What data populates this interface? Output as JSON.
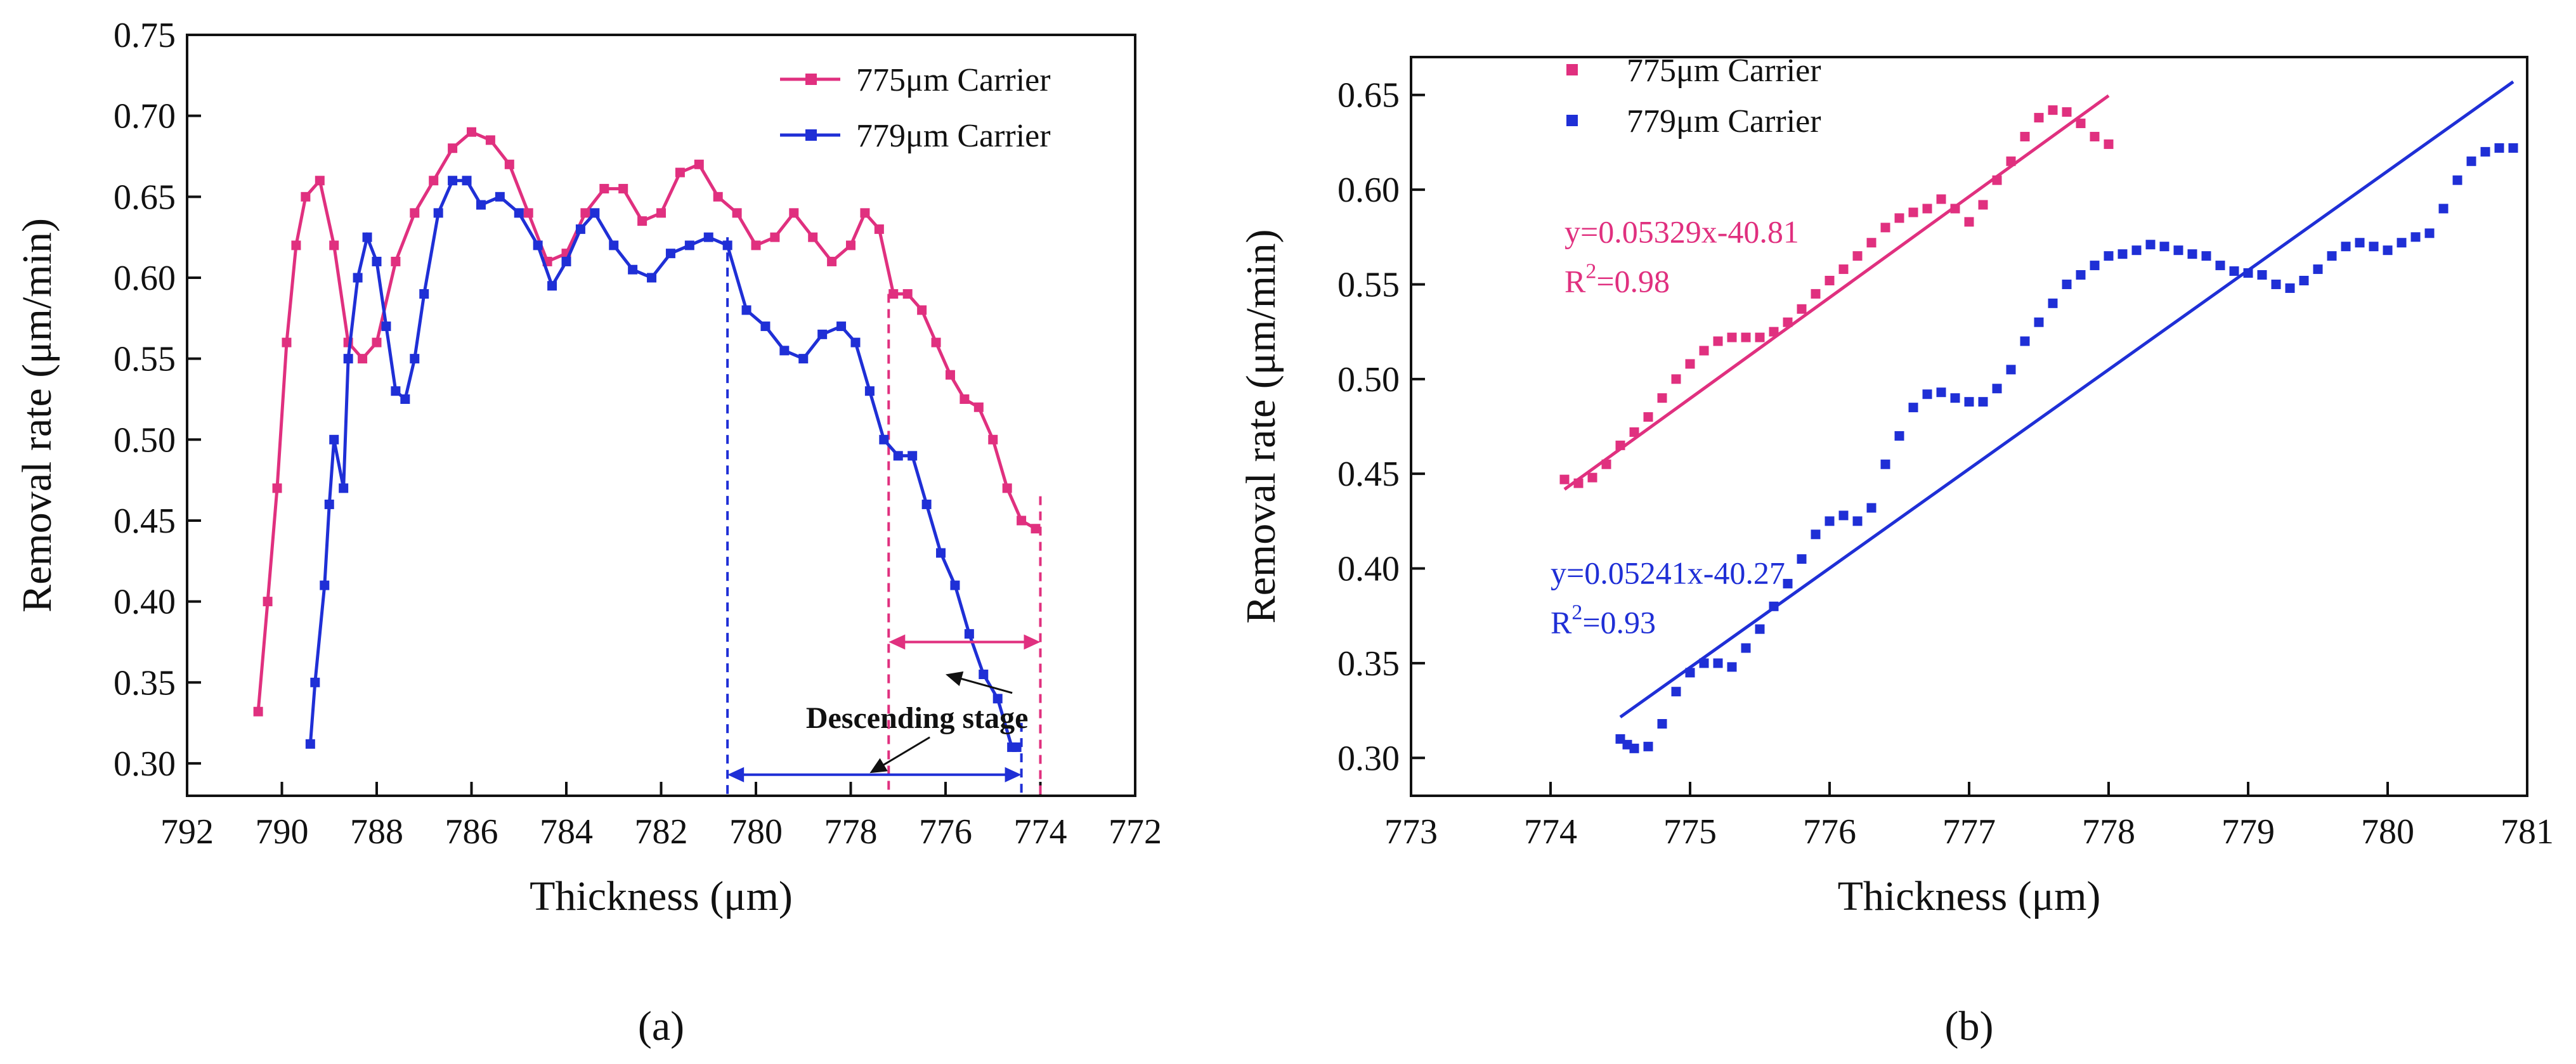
{
  "chart_data": [
    {
      "type": "line",
      "panel_label": "(a)",
      "xlabel": "Thickness (μm)",
      "ylabel": "Removal rate (μm/min)",
      "xlim": [
        792,
        772
      ],
      "x_reversed": true,
      "ylim": [
        0.28,
        0.75
      ],
      "x_ticks": [
        792,
        790,
        788,
        786,
        784,
        782,
        780,
        778,
        776,
        774,
        772
      ],
      "y_ticks": [
        0.3,
        0.35,
        0.4,
        0.45,
        0.5,
        0.55,
        0.6,
        0.65,
        0.7,
        0.75
      ],
      "x_tick_labels": [
        "792",
        "790",
        "788",
        "786",
        "784",
        "782",
        "780",
        "778",
        "776",
        "774",
        "772"
      ],
      "y_tick_labels": [
        "0.30",
        "0.35",
        "0.40",
        "0.45",
        "0.50",
        "0.55",
        "0.60",
        "0.65",
        "0.70",
        "0.75"
      ],
      "legend_position": "top-right",
      "grid": false,
      "series": [
        {
          "name": "775μm Carrier",
          "color": "#e0307f",
          "marker": "square",
          "points": [
            [
              790.5,
              0.332
            ],
            [
              790.3,
              0.4
            ],
            [
              790.1,
              0.47
            ],
            [
              789.9,
              0.56
            ],
            [
              789.7,
              0.62
            ],
            [
              789.5,
              0.65
            ],
            [
              789.2,
              0.66
            ],
            [
              788.9,
              0.62
            ],
            [
              788.6,
              0.56
            ],
            [
              788.3,
              0.55
            ],
            [
              788.0,
              0.56
            ],
            [
              787.6,
              0.61
            ],
            [
              787.2,
              0.64
            ],
            [
              786.8,
              0.66
            ],
            [
              786.4,
              0.68
            ],
            [
              786.0,
              0.69
            ],
            [
              785.6,
              0.685
            ],
            [
              785.2,
              0.67
            ],
            [
              784.8,
              0.64
            ],
            [
              784.4,
              0.61
            ],
            [
              784.0,
              0.615
            ],
            [
              783.6,
              0.64
            ],
            [
              783.2,
              0.655
            ],
            [
              782.8,
              0.655
            ],
            [
              782.4,
              0.635
            ],
            [
              782.0,
              0.64
            ],
            [
              781.6,
              0.665
            ],
            [
              781.2,
              0.67
            ],
            [
              780.8,
              0.65
            ],
            [
              780.4,
              0.64
            ],
            [
              780.0,
              0.62
            ],
            [
              779.6,
              0.625
            ],
            [
              779.2,
              0.64
            ],
            [
              778.8,
              0.625
            ],
            [
              778.4,
              0.61
            ],
            [
              778.0,
              0.62
            ],
            [
              777.7,
              0.64
            ],
            [
              777.4,
              0.63
            ],
            [
              777.1,
              0.59
            ],
            [
              776.8,
              0.59
            ],
            [
              776.5,
              0.58
            ],
            [
              776.2,
              0.56
            ],
            [
              775.9,
              0.54
            ],
            [
              775.6,
              0.525
            ],
            [
              775.3,
              0.52
            ],
            [
              775.0,
              0.5
            ],
            [
              774.7,
              0.47
            ],
            [
              774.4,
              0.45
            ],
            [
              774.1,
              0.445
            ]
          ]
        },
        {
          "name": "779μm Carrier",
          "color": "#1f2fd6",
          "marker": "square",
          "points": [
            [
              789.4,
              0.312
            ],
            [
              789.3,
              0.35
            ],
            [
              789.1,
              0.41
            ],
            [
              789.0,
              0.46
            ],
            [
              788.9,
              0.5
            ],
            [
              788.7,
              0.47
            ],
            [
              788.6,
              0.55
            ],
            [
              788.4,
              0.6
            ],
            [
              788.2,
              0.625
            ],
            [
              788.0,
              0.61
            ],
            [
              787.8,
              0.57
            ],
            [
              787.6,
              0.53
            ],
            [
              787.4,
              0.525
            ],
            [
              787.2,
              0.55
            ],
            [
              787.0,
              0.59
            ],
            [
              786.7,
              0.64
            ],
            [
              786.4,
              0.66
            ],
            [
              786.1,
              0.66
            ],
            [
              785.8,
              0.645
            ],
            [
              785.4,
              0.65
            ],
            [
              785.0,
              0.64
            ],
            [
              784.6,
              0.62
            ],
            [
              784.3,
              0.595
            ],
            [
              784.0,
              0.61
            ],
            [
              783.7,
              0.63
            ],
            [
              783.4,
              0.64
            ],
            [
              783.0,
              0.62
            ],
            [
              782.6,
              0.605
            ],
            [
              782.2,
              0.6
            ],
            [
              781.8,
              0.615
            ],
            [
              781.4,
              0.62
            ],
            [
              781.0,
              0.625
            ],
            [
              780.6,
              0.62
            ],
            [
              780.2,
              0.58
            ],
            [
              779.8,
              0.57
            ],
            [
              779.4,
              0.555
            ],
            [
              779.0,
              0.55
            ],
            [
              778.6,
              0.565
            ],
            [
              778.2,
              0.57
            ],
            [
              777.9,
              0.56
            ],
            [
              777.6,
              0.53
            ],
            [
              777.3,
              0.5
            ],
            [
              777.0,
              0.49
            ],
            [
              776.7,
              0.49
            ],
            [
              776.4,
              0.46
            ],
            [
              776.1,
              0.43
            ],
            [
              775.8,
              0.41
            ],
            [
              775.5,
              0.38
            ],
            [
              775.2,
              0.355
            ],
            [
              774.9,
              0.34
            ],
            [
              774.6,
              0.31
            ],
            [
              774.5,
              0.31
            ]
          ]
        }
      ],
      "marker_lines": [
        {
          "x": 780.6,
          "y_top": 0.625,
          "color": "#1f2fd6"
        },
        {
          "x": 774.4,
          "y_top": 0.325,
          "color": "#1f2fd6"
        },
        {
          "x": 777.2,
          "y_top": 0.59,
          "color": "#e0307f"
        },
        {
          "x": 774.0,
          "y_top": 0.465,
          "color": "#e0307f"
        }
      ],
      "range_arrows": [
        {
          "x1": 777.2,
          "x2": 774.0,
          "y": 0.375,
          "color": "#e0307f"
        },
        {
          "x1": 780.6,
          "x2": 774.4,
          "y": 0.293,
          "color": "#1f2fd6"
        }
      ],
      "annotation": {
        "text": "Descending stage",
        "x": 776.6,
        "y": 0.322,
        "arrow_targets": [
          [
            776.0,
            0.355
          ],
          [
            777.6,
            0.294
          ]
        ]
      }
    },
    {
      "type": "scatter",
      "panel_label": "(b)",
      "xlabel": "Thickness (μm)",
      "ylabel": "Removal rate (μm/min)",
      "xlim": [
        773,
        781
      ],
      "ylim": [
        0.28,
        0.67
      ],
      "x_ticks": [
        773,
        774,
        775,
        776,
        777,
        778,
        779,
        780,
        781
      ],
      "y_ticks": [
        0.3,
        0.35,
        0.4,
        0.45,
        0.5,
        0.55,
        0.6,
        0.65
      ],
      "x_tick_labels": [
        "773",
        "774",
        "775",
        "776",
        "777",
        "778",
        "779",
        "780",
        "781"
      ],
      "y_tick_labels": [
        "0.30",
        "0.35",
        "0.40",
        "0.45",
        "0.50",
        "0.55",
        "0.60",
        "0.65"
      ],
      "legend_position": "top-left",
      "grid": false,
      "series": [
        {
          "name": "775μm Carrier",
          "color": "#e0307f",
          "marker": "square",
          "points": [
            [
              774.1,
              0.447
            ],
            [
              774.2,
              0.445
            ],
            [
              774.3,
              0.448
            ],
            [
              774.4,
              0.455
            ],
            [
              774.5,
              0.465
            ],
            [
              774.6,
              0.472
            ],
            [
              774.7,
              0.48
            ],
            [
              774.8,
              0.49
            ],
            [
              774.9,
              0.5
            ],
            [
              775.0,
              0.508
            ],
            [
              775.1,
              0.515
            ],
            [
              775.2,
              0.52
            ],
            [
              775.3,
              0.522
            ],
            [
              775.4,
              0.522
            ],
            [
              775.5,
              0.522
            ],
            [
              775.6,
              0.525
            ],
            [
              775.7,
              0.53
            ],
            [
              775.8,
              0.537
            ],
            [
              775.9,
              0.545
            ],
            [
              776.0,
              0.552
            ],
            [
              776.1,
              0.558
            ],
            [
              776.2,
              0.565
            ],
            [
              776.3,
              0.572
            ],
            [
              776.4,
              0.58
            ],
            [
              776.5,
              0.585
            ],
            [
              776.6,
              0.588
            ],
            [
              776.7,
              0.59
            ],
            [
              776.8,
              0.595
            ],
            [
              776.9,
              0.59
            ],
            [
              777.0,
              0.583
            ],
            [
              777.1,
              0.592
            ],
            [
              777.2,
              0.605
            ],
            [
              777.3,
              0.615
            ],
            [
              777.4,
              0.628
            ],
            [
              777.5,
              0.638
            ],
            [
              777.6,
              0.642
            ],
            [
              777.7,
              0.641
            ],
            [
              777.8,
              0.635
            ],
            [
              777.9,
              0.628
            ],
            [
              778.0,
              0.624
            ]
          ]
        },
        {
          "name": "779μm Carrier",
          "color": "#1f2fd6",
          "marker": "square",
          "points": [
            [
              774.5,
              0.31
            ],
            [
              774.55,
              0.307
            ],
            [
              774.6,
              0.305
            ],
            [
              774.7,
              0.306
            ],
            [
              774.8,
              0.318
            ],
            [
              774.9,
              0.335
            ],
            [
              775.0,
              0.345
            ],
            [
              775.1,
              0.35
            ],
            [
              775.2,
              0.35
            ],
            [
              775.3,
              0.348
            ],
            [
              775.4,
              0.358
            ],
            [
              775.5,
              0.368
            ],
            [
              775.6,
              0.38
            ],
            [
              775.7,
              0.392
            ],
            [
              775.8,
              0.405
            ],
            [
              775.9,
              0.418
            ],
            [
              776.0,
              0.425
            ],
            [
              776.1,
              0.428
            ],
            [
              776.2,
              0.425
            ],
            [
              776.3,
              0.432
            ],
            [
              776.4,
              0.455
            ],
            [
              776.5,
              0.47
            ],
            [
              776.6,
              0.485
            ],
            [
              776.7,
              0.492
            ],
            [
              776.8,
              0.493
            ],
            [
              776.9,
              0.49
            ],
            [
              777.0,
              0.488
            ],
            [
              777.1,
              0.488
            ],
            [
              777.2,
              0.495
            ],
            [
              777.3,
              0.505
            ],
            [
              777.4,
              0.52
            ],
            [
              777.5,
              0.53
            ],
            [
              777.6,
              0.54
            ],
            [
              777.7,
              0.55
            ],
            [
              777.8,
              0.555
            ],
            [
              777.9,
              0.56
            ],
            [
              778.0,
              0.565
            ],
            [
              778.1,
              0.566
            ],
            [
              778.2,
              0.568
            ],
            [
              778.3,
              0.571
            ],
            [
              778.4,
              0.57
            ],
            [
              778.5,
              0.568
            ],
            [
              778.6,
              0.566
            ],
            [
              778.7,
              0.565
            ],
            [
              778.8,
              0.56
            ],
            [
              778.9,
              0.557
            ],
            [
              779.0,
              0.556
            ],
            [
              779.1,
              0.555
            ],
            [
              779.2,
              0.55
            ],
            [
              779.3,
              0.548
            ],
            [
              779.4,
              0.552
            ],
            [
              779.5,
              0.558
            ],
            [
              779.6,
              0.565
            ],
            [
              779.7,
              0.57
            ],
            [
              779.8,
              0.572
            ],
            [
              779.9,
              0.57
            ],
            [
              780.0,
              0.568
            ],
            [
              780.1,
              0.572
            ],
            [
              780.2,
              0.575
            ],
            [
              780.3,
              0.577
            ],
            [
              780.4,
              0.59
            ],
            [
              780.5,
              0.605
            ],
            [
              780.6,
              0.615
            ],
            [
              780.7,
              0.62
            ],
            [
              780.8,
              0.622
            ],
            [
              780.9,
              0.622
            ]
          ]
        }
      ],
      "fits": [
        {
          "label": "y=0.05329x-40.81",
          "r2_base": "R",
          "r2_exp": "2",
          "r2_value": "=0.98",
          "color": "#e0307f",
          "x_range": [
            774.1,
            778.0
          ],
          "slope": 0.05329,
          "intercept": -40.81,
          "label_at": [
            774.1,
            0.572
          ]
        },
        {
          "label": "y=0.05241x-40.27",
          "r2_base": "R",
          "r2_exp": "2",
          "r2_value": "=0.93",
          "color": "#1f2fd6",
          "x_range": [
            774.5,
            780.9
          ],
          "slope": 0.05241,
          "intercept": -40.27,
          "label_at": [
            774.0,
            0.392
          ]
        }
      ]
    }
  ]
}
